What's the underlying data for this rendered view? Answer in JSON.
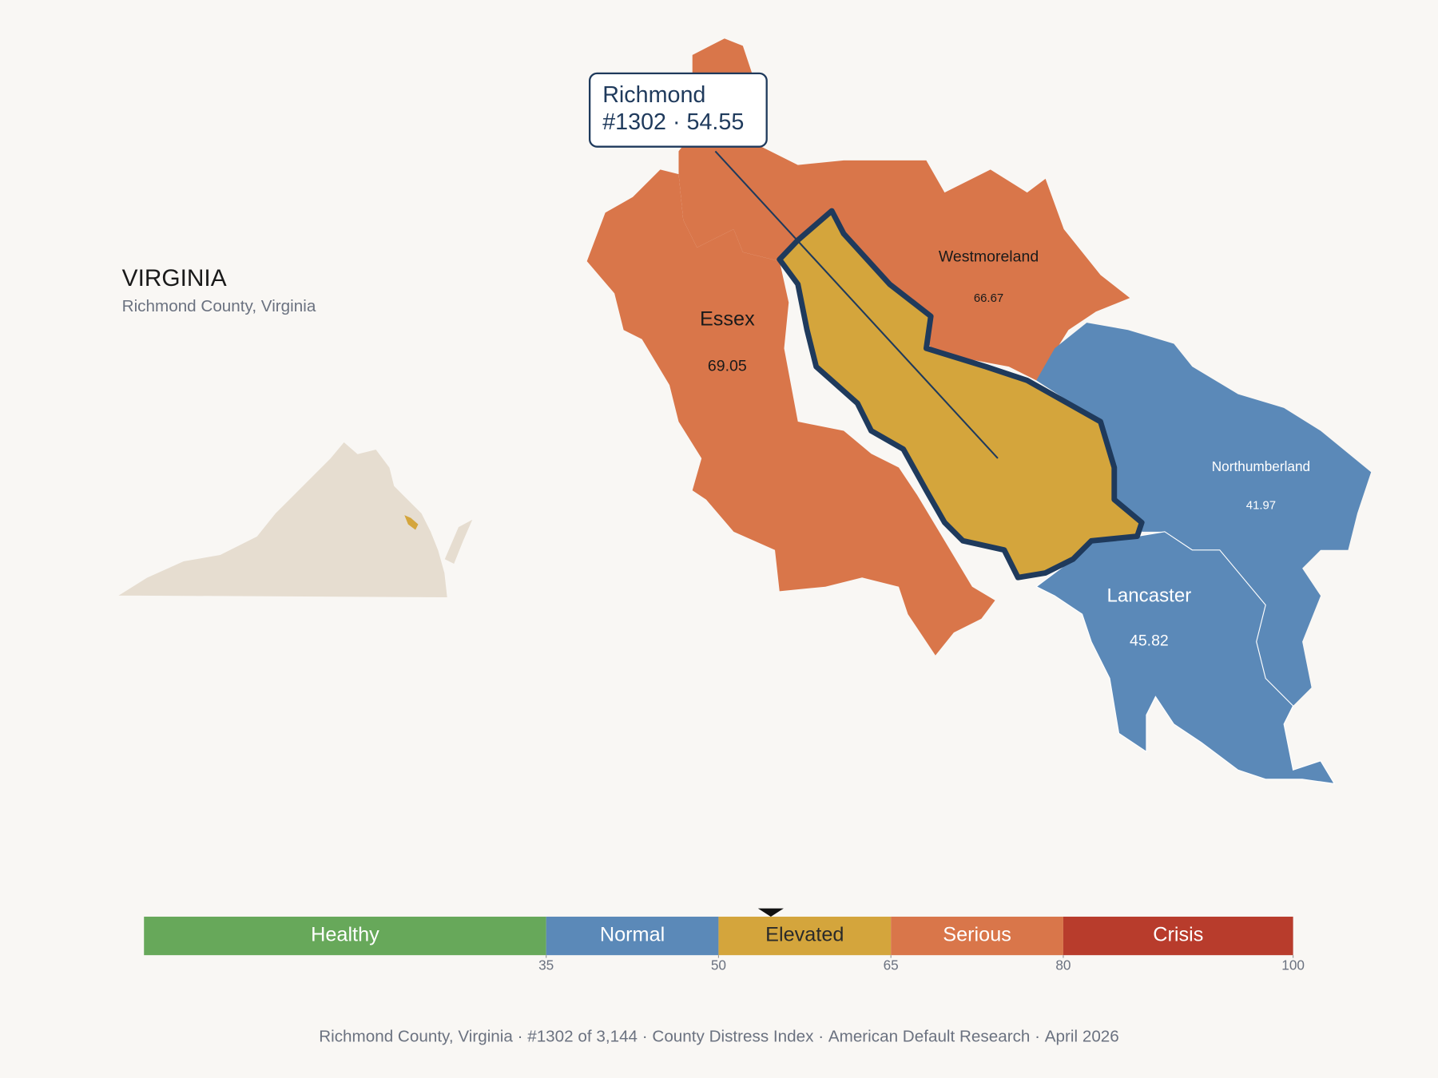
{
  "header": {
    "title": "VIRGINIA",
    "subtitle": "Richmond County, Virginia"
  },
  "callout": {
    "name": "Richmond",
    "rank": "#1302",
    "score": 54.55
  },
  "counties": [
    {
      "name": "Essex",
      "value": "69.05"
    },
    {
      "name": "Westmoreland",
      "value": "66.67"
    },
    {
      "name": "Northumberland",
      "value": "41.97"
    },
    {
      "name": "Lancaster",
      "value": "45.82"
    }
  ],
  "legend": {
    "range": [
      0,
      100
    ],
    "ticks": [
      35,
      50,
      65,
      80,
      100
    ],
    "bands": [
      {
        "label": "Healthy",
        "color": "#67a85a",
        "text_color": "#ffffff"
      },
      {
        "label": "Normal",
        "color": "#5b89b8",
        "text_color": "#ffffff"
      },
      {
        "label": "Elevated",
        "color": "#d4a53c",
        "text_color": "#2a2a2a"
      },
      {
        "label": "Serious",
        "color": "#d9764a",
        "text_color": "#ffffff"
      },
      {
        "label": "Crisis",
        "color": "#b83c2c",
        "text_color": "#ffffff"
      }
    ]
  },
  "footer": [
    "Richmond County, Virginia",
    "#1302 of 3,144",
    "County Distress Index",
    "American Default Research",
    "April 2026"
  ]
}
